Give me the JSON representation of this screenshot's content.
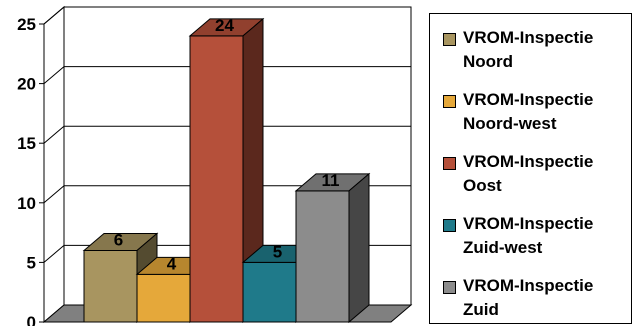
{
  "chart_data": {
    "type": "bar",
    "title": "",
    "xlabel": "",
    "ylabel": "",
    "ylim": [
      0,
      25
    ],
    "yticks": [
      0,
      5,
      10,
      15,
      20,
      25
    ],
    "grid": true,
    "three_d": true,
    "legend_position": "right",
    "series": [
      {
        "name": "VROM-Inspectie Noord",
        "value": 6,
        "color": "#a89560"
      },
      {
        "name": "VROM-Inspectie Noord-west",
        "value": 4,
        "color": "#e5a83a"
      },
      {
        "name": "VROM-Inspectie Oost",
        "value": 24,
        "color": "#b5503a"
      },
      {
        "name": "VROM-Inspectie Zuid-west",
        "value": 5,
        "color": "#1f7a8a"
      },
      {
        "name": "VROM-Inspectie Zuid",
        "value": 11,
        "color": "#8c8c8c"
      }
    ]
  }
}
